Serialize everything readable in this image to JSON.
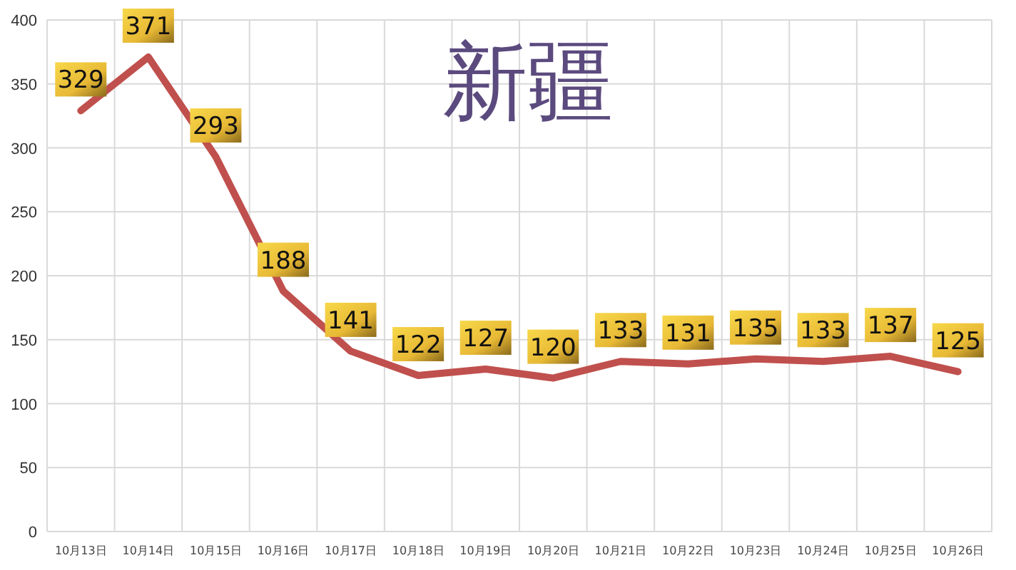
{
  "chart_data": {
    "type": "line",
    "title": "新疆",
    "categories": [
      "10月13日",
      "10月14日",
      "10月15日",
      "10月16日",
      "10月17日",
      "10月18日",
      "10月19日",
      "10月20日",
      "10月21日",
      "10月22日",
      "10月23日",
      "10月24日",
      "10月25日",
      "10月26日"
    ],
    "series": [
      {
        "color": "#c0504d",
        "values": [
          329,
          371,
          293,
          188,
          141,
          122,
          127,
          120,
          133,
          131,
          135,
          133,
          137,
          125
        ]
      }
    ],
    "ylim": [
      0,
      400
    ],
    "yticks": [
      0,
      50,
      100,
      150,
      200,
      250,
      300,
      350,
      400
    ],
    "grid": true,
    "data_labels": true,
    "marker": "none",
    "line_style": "solid"
  }
}
